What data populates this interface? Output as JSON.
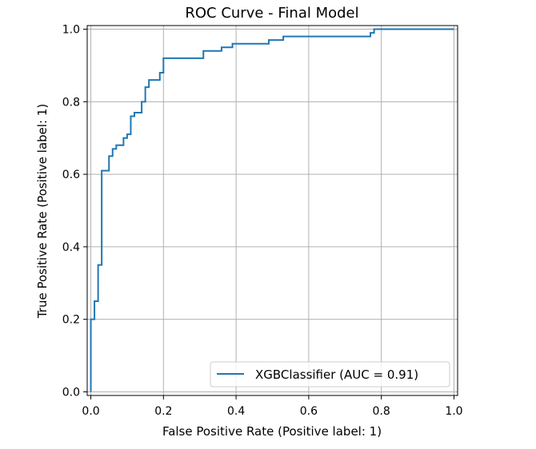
{
  "chart_data": {
    "type": "line",
    "title": "ROC Curve - Final Model",
    "xlabel": "False Positive Rate (Positive label: 1)",
    "ylabel": "True Positive Rate (Positive label: 1)",
    "xlim": [
      -0.01,
      1.01
    ],
    "ylim": [
      -0.01,
      1.01
    ],
    "x_ticks": [
      "0.0",
      "0.2",
      "0.4",
      "0.6",
      "0.8",
      "1.0"
    ],
    "y_ticks": [
      "0.0",
      "0.2",
      "0.4",
      "0.6",
      "0.8",
      "1.0"
    ],
    "grid": true,
    "legend": {
      "position": "bottom-right",
      "entries": [
        "XGBClassifier (AUC = 0.91)"
      ]
    },
    "series": [
      {
        "name": "XGBClassifier (AUC = 0.91)",
        "color": "#1f77b4",
        "step": true,
        "x": [
          0.0,
          0.0,
          0.01,
          0.01,
          0.02,
          0.02,
          0.03,
          0.03,
          0.05,
          0.05,
          0.06,
          0.06,
          0.07,
          0.07,
          0.09,
          0.09,
          0.1,
          0.1,
          0.11,
          0.11,
          0.12,
          0.12,
          0.14,
          0.14,
          0.15,
          0.15,
          0.16,
          0.16,
          0.17,
          0.17,
          0.19,
          0.19,
          0.2,
          0.2,
          0.31,
          0.31,
          0.36,
          0.36,
          0.39,
          0.39,
          0.49,
          0.49,
          0.53,
          0.53,
          0.77,
          0.77,
          0.78,
          0.78,
          1.0
        ],
        "y": [
          0.0,
          0.2,
          0.2,
          0.25,
          0.25,
          0.35,
          0.35,
          0.61,
          0.61,
          0.65,
          0.65,
          0.67,
          0.67,
          0.68,
          0.68,
          0.7,
          0.7,
          0.71,
          0.71,
          0.76,
          0.76,
          0.77,
          0.77,
          0.8,
          0.8,
          0.84,
          0.84,
          0.86,
          0.86,
          0.86,
          0.86,
          0.88,
          0.88,
          0.92,
          0.92,
          0.94,
          0.94,
          0.95,
          0.95,
          0.96,
          0.96,
          0.97,
          0.97,
          0.98,
          0.98,
          0.99,
          0.99,
          1.0,
          1.0
        ]
      }
    ]
  }
}
